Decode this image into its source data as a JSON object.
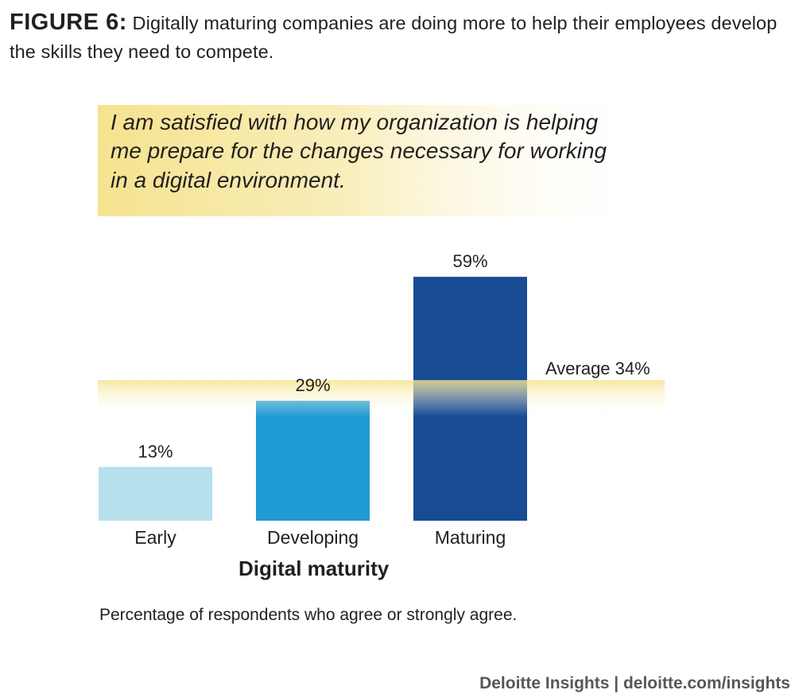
{
  "figure": {
    "label": "FIGURE 6:",
    "caption": "Digitally maturing companies are doing more to help their employees develop the skills they need to compete."
  },
  "quote": {
    "lines": [
      "I am satisfied with how my organization is helping",
      "me prepare for the changes necessary for working",
      "in a digital environment."
    ]
  },
  "colors": {
    "early": "#b6e1ed",
    "developing": "#1e9bd3",
    "maturing": "#174c94",
    "highlight": "#f7e9a0",
    "text": "#231f20",
    "source": "#54585a"
  },
  "chart_data": {
    "type": "bar",
    "title": "I am satisfied with how my organization is helping me prepare for the changes necessary for working in a digital environment.",
    "categories": [
      "Early",
      "Developing",
      "Maturing"
    ],
    "values": [
      13,
      29,
      59
    ],
    "value_labels": [
      "13%",
      "29%",
      "59%"
    ],
    "xlabel": "Digital maturity",
    "ylabel": "",
    "ylim": [
      0,
      65
    ],
    "grid": false,
    "average": {
      "value": 34,
      "label": "Average 34%"
    },
    "note": "Percentage of respondents who agree or strongly agree."
  },
  "source": "Deloitte Insights | deloitte.com/insights"
}
